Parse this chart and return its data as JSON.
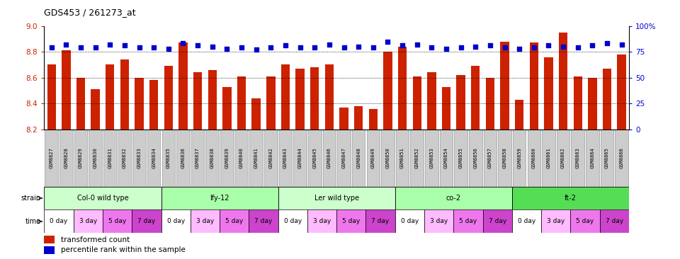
{
  "title": "GDS453 / 261273_at",
  "bar_color": "#cc2200",
  "dot_color": "#0000cc",
  "ylim_left": [
    8.2,
    9.0
  ],
  "ylim_right": [
    0,
    100
  ],
  "yticks_left": [
    8.2,
    8.4,
    8.6,
    8.8,
    9.0
  ],
  "yticks_right": [
    0,
    25,
    50,
    75,
    100
  ],
  "ytick_labels_right": [
    "0",
    "25",
    "50",
    "75",
    "100%"
  ],
  "samples": [
    "GSM8827",
    "GSM8828",
    "GSM8829",
    "GSM8830",
    "GSM8831",
    "GSM8832",
    "GSM8833",
    "GSM8834",
    "GSM8835",
    "GSM8836",
    "GSM8837",
    "GSM8838",
    "GSM8839",
    "GSM8840",
    "GSM8841",
    "GSM8842",
    "GSM8843",
    "GSM8844",
    "GSM8845",
    "GSM8846",
    "GSM8847",
    "GSM8848",
    "GSM8849",
    "GSM8850",
    "GSM8851",
    "GSM8852",
    "GSM8853",
    "GSM8854",
    "GSM8855",
    "GSM8856",
    "GSM8857",
    "GSM8858",
    "GSM8859",
    "GSM8860",
    "GSM8861",
    "GSM8862",
    "GSM8863",
    "GSM8864",
    "GSM8865",
    "GSM8866"
  ],
  "bar_values": [
    8.7,
    8.81,
    8.6,
    8.51,
    8.7,
    8.74,
    8.6,
    8.58,
    8.69,
    8.87,
    8.64,
    8.66,
    8.53,
    8.61,
    8.44,
    8.61,
    8.7,
    8.67,
    8.68,
    8.7,
    8.37,
    8.38,
    8.36,
    8.8,
    8.84,
    8.61,
    8.64,
    8.53,
    8.62,
    8.69,
    8.6,
    8.88,
    8.43,
    8.87,
    8.76,
    8.95,
    8.61,
    8.6,
    8.67,
    8.78
  ],
  "percentile_values": [
    79,
    82,
    79,
    79,
    82,
    81,
    79,
    79,
    78,
    83,
    81,
    80,
    78,
    79,
    77,
    79,
    81,
    79,
    79,
    82,
    79,
    80,
    79,
    85,
    81,
    82,
    79,
    78,
    79,
    80,
    81,
    79,
    78,
    79,
    81,
    80,
    79,
    81,
    83,
    82
  ],
  "strains": [
    {
      "label": "Col-0 wild type",
      "start": 0,
      "end": 8,
      "color": "#ccffcc"
    },
    {
      "label": "lfy-12",
      "start": 8,
      "end": 16,
      "color": "#aaffaa"
    },
    {
      "label": "Ler wild type",
      "start": 16,
      "end": 24,
      "color": "#ccffcc"
    },
    {
      "label": "co-2",
      "start": 24,
      "end": 32,
      "color": "#aaffaa"
    },
    {
      "label": "ft-2",
      "start": 32,
      "end": 40,
      "color": "#55dd55"
    }
  ],
  "time_labels": [
    "0 day",
    "3 day",
    "5 day",
    "7 day"
  ],
  "time_colors": [
    "#ffffff",
    "#ffbbff",
    "#ee77ee",
    "#cc44cc"
  ],
  "xlabel_box_color": "#cccccc",
  "xlabel_box_edge": "#888888",
  "tick_label_color_left": "#cc2200",
  "tick_label_color_right": "#0000cc"
}
